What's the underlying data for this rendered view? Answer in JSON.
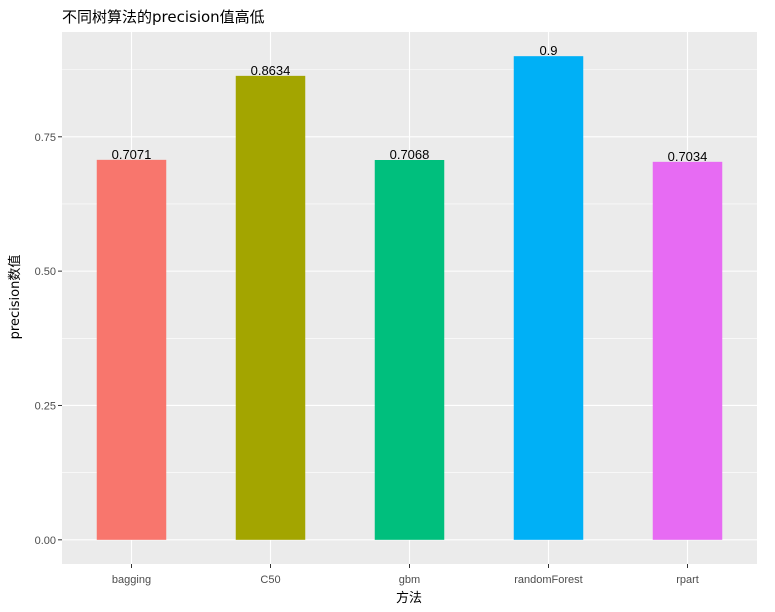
{
  "chart_data": {
    "type": "bar",
    "title": "不同树算法的precision值高低",
    "xlabel": "方法",
    "ylabel": "precision数值",
    "categories": [
      "bagging",
      "C50",
      "gbm",
      "randomForest",
      "rpart"
    ],
    "values": [
      0.7071,
      0.8634,
      0.7068,
      0.9,
      0.7034
    ],
    "data_labels": [
      "0.7071",
      "0.8634",
      "0.7068",
      "0.9",
      "0.7034"
    ],
    "colors": [
      "#F8766D",
      "#A3A500",
      "#00BF7D",
      "#00B0F6",
      "#E76BF3"
    ],
    "yticks": [
      0,
      0.25,
      0.5,
      0.75
    ],
    "ytick_labels": [
      "0.00",
      "0.25",
      "0.50",
      "0.75"
    ],
    "ylim": [
      -0.045,
      0.945
    ],
    "grid": true,
    "legend": "none",
    "panel_background": "#EBEBEB",
    "grid_color": "#FFFFFF"
  }
}
